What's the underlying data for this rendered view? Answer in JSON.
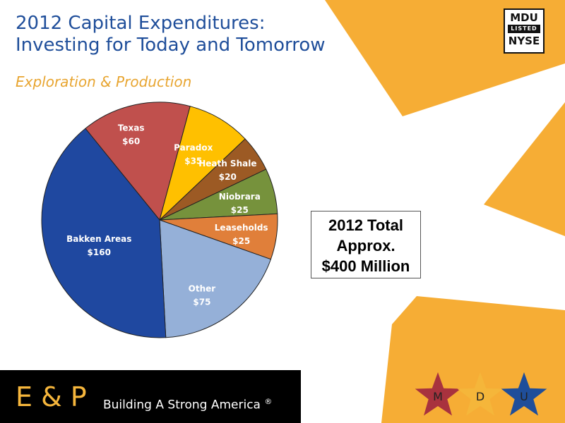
{
  "slide": {
    "title_line1": "2012 Capital Expenditures:",
    "title_line2": "Investing for Today and Tomorrow",
    "subtitle": "Exploration & Production"
  },
  "logo": {
    "top": "MDU",
    "middle": "LISTED",
    "bottom": "NYSE"
  },
  "total_box": {
    "line1": "2012 Total",
    "line2": "Approx.",
    "line3": "$400 Million"
  },
  "footer": {
    "main": "E & P",
    "tagline": "Building A Strong America",
    "registered_mark": "®",
    "stars": [
      {
        "letter": "M",
        "color": "#a8323e"
      },
      {
        "letter": "D",
        "color": "#f5b63a"
      },
      {
        "letter": "U",
        "color": "#1f4e9a"
      }
    ]
  },
  "colors": {
    "title": "#1f4e9a",
    "subtitle": "#e8a530",
    "accent_orange": "#f6ad35",
    "footer_bg": "#000000"
  },
  "chart_data": {
    "type": "pie",
    "slices": [
      {
        "label": "Texas",
        "value_label": "$60",
        "value": 60,
        "color": "#c0504d"
      },
      {
        "label": "Paradox",
        "value_label": "$35",
        "value": 35,
        "color": "#ffc000"
      },
      {
        "label": "Heath Shale",
        "value_label": "$20",
        "value": 20,
        "color": "#9c5a24"
      },
      {
        "label": "Niobrara",
        "value_label": "$25",
        "value": 25,
        "color": "#76923c"
      },
      {
        "label": "Leaseholds",
        "value_label": "$25",
        "value": 25,
        "color": "#e07f3a"
      },
      {
        "label": "Other",
        "value_label": "$75",
        "value": 75,
        "color": "#95b0d8"
      },
      {
        "label": "Bakken Areas",
        "value_label": "$160",
        "value": 160,
        "color": "#1f48a0"
      }
    ],
    "start_angle_deg": -39,
    "direction": "clockwise"
  }
}
